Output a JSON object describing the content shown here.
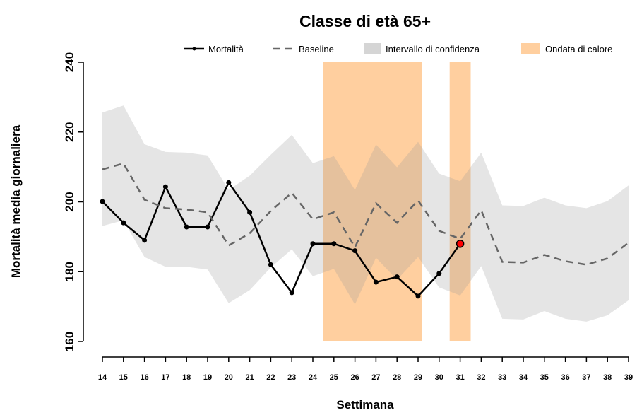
{
  "chart_data": {
    "type": "line",
    "title": "Classe di età 65+",
    "x_label": "Settimana",
    "y_label": "Mortalità media giornaliera",
    "x": [
      14,
      15,
      16,
      17,
      18,
      19,
      20,
      21,
      22,
      23,
      24,
      25,
      26,
      27,
      28,
      29,
      30,
      31,
      32,
      33,
      34,
      35,
      36,
      37,
      38,
      39
    ],
    "series": [
      {
        "name": "Mortalità",
        "color": "#000000",
        "values": [
          200.1,
          194,
          189,
          204.3,
          192.8,
          192.8,
          205.5,
          197,
          182,
          174,
          188,
          188,
          186,
          177,
          178.5,
          173,
          179.5,
          188,
          null,
          null,
          null,
          null,
          null,
          null,
          null,
          null
        ]
      },
      {
        "name": "Baseline",
        "color": "#666666",
        "dashed": true,
        "values": [
          209.3,
          211,
          200.6,
          198.2,
          197.8,
          197,
          187.5,
          191,
          197.4,
          202.6,
          195,
          197,
          187,
          199.6,
          194,
          200.4,
          191.7,
          189.4,
          197.6,
          182.8,
          182.6,
          184.8,
          183,
          182,
          183.8,
          188.3
        ]
      }
    ],
    "confidence_band": {
      "name": "Intervallo di confidenza",
      "color": "#969696",
      "opacity": 0.25,
      "upper": [
        225.6,
        227.6,
        216.5,
        214.3,
        214.1,
        213.3,
        203.4,
        207.5,
        213.5,
        219.2,
        211.1,
        213.1,
        203.4,
        216.4,
        209.9,
        217.2,
        208.1,
        205.9,
        214.1,
        199,
        198.8,
        201.2,
        199,
        198.2,
        200.2,
        204.7
      ],
      "lower": [
        193.1,
        194.7,
        184.2,
        181.4,
        181.4,
        180.6,
        171,
        174.7,
        181.2,
        186.4,
        178.7,
        180.8,
        170.6,
        184,
        177.7,
        184.2,
        175.5,
        173.2,
        181.6,
        166.5,
        166.3,
        168.7,
        166.5,
        165.7,
        167.5,
        171.8
      ]
    },
    "heat_waves": {
      "name": "Ondata di calore",
      "color": "#ffcf9f",
      "ranges": [
        [
          24.5,
          29.2
        ],
        [
          30.5,
          31.5
        ]
      ]
    },
    "highlight_last_color": "#ff0000",
    "xlim": [
      14,
      39
    ],
    "ylim": [
      160,
      240
    ],
    "yticks": [
      160,
      180,
      200,
      220,
      240
    ],
    "legend": "top"
  }
}
